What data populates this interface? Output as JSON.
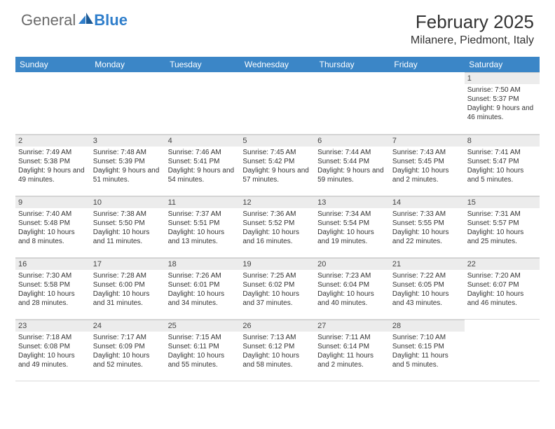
{
  "logo": {
    "part1": "General",
    "part2": "Blue"
  },
  "title": "February 2025",
  "location": "Milanere, Piedmont, Italy",
  "colors": {
    "header_bg": "#3b86c7",
    "header_text": "#ffffff",
    "daynum_bg": "#ececec",
    "border": "#d9d9d9",
    "logo_accent": "#2f7ecb"
  },
  "typography": {
    "title_size": 26,
    "location_size": 16,
    "header_size": 12,
    "cell_size": 10
  },
  "days_of_week": [
    "Sunday",
    "Monday",
    "Tuesday",
    "Wednesday",
    "Thursday",
    "Friday",
    "Saturday"
  ],
  "weeks": [
    [
      null,
      null,
      null,
      null,
      null,
      null,
      {
        "n": "1",
        "sunrise": "7:50 AM",
        "sunset": "5:37 PM",
        "dl": "9 hours and 46 minutes."
      }
    ],
    [
      {
        "n": "2",
        "sunrise": "7:49 AM",
        "sunset": "5:38 PM",
        "dl": "9 hours and 49 minutes."
      },
      {
        "n": "3",
        "sunrise": "7:48 AM",
        "sunset": "5:39 PM",
        "dl": "9 hours and 51 minutes."
      },
      {
        "n": "4",
        "sunrise": "7:46 AM",
        "sunset": "5:41 PM",
        "dl": "9 hours and 54 minutes."
      },
      {
        "n": "5",
        "sunrise": "7:45 AM",
        "sunset": "5:42 PM",
        "dl": "9 hours and 57 minutes."
      },
      {
        "n": "6",
        "sunrise": "7:44 AM",
        "sunset": "5:44 PM",
        "dl": "9 hours and 59 minutes."
      },
      {
        "n": "7",
        "sunrise": "7:43 AM",
        "sunset": "5:45 PM",
        "dl": "10 hours and 2 minutes."
      },
      {
        "n": "8",
        "sunrise": "7:41 AM",
        "sunset": "5:47 PM",
        "dl": "10 hours and 5 minutes."
      }
    ],
    [
      {
        "n": "9",
        "sunrise": "7:40 AM",
        "sunset": "5:48 PM",
        "dl": "10 hours and 8 minutes."
      },
      {
        "n": "10",
        "sunrise": "7:38 AM",
        "sunset": "5:50 PM",
        "dl": "10 hours and 11 minutes."
      },
      {
        "n": "11",
        "sunrise": "7:37 AM",
        "sunset": "5:51 PM",
        "dl": "10 hours and 13 minutes."
      },
      {
        "n": "12",
        "sunrise": "7:36 AM",
        "sunset": "5:52 PM",
        "dl": "10 hours and 16 minutes."
      },
      {
        "n": "13",
        "sunrise": "7:34 AM",
        "sunset": "5:54 PM",
        "dl": "10 hours and 19 minutes."
      },
      {
        "n": "14",
        "sunrise": "7:33 AM",
        "sunset": "5:55 PM",
        "dl": "10 hours and 22 minutes."
      },
      {
        "n": "15",
        "sunrise": "7:31 AM",
        "sunset": "5:57 PM",
        "dl": "10 hours and 25 minutes."
      }
    ],
    [
      {
        "n": "16",
        "sunrise": "7:30 AM",
        "sunset": "5:58 PM",
        "dl": "10 hours and 28 minutes."
      },
      {
        "n": "17",
        "sunrise": "7:28 AM",
        "sunset": "6:00 PM",
        "dl": "10 hours and 31 minutes."
      },
      {
        "n": "18",
        "sunrise": "7:26 AM",
        "sunset": "6:01 PM",
        "dl": "10 hours and 34 minutes."
      },
      {
        "n": "19",
        "sunrise": "7:25 AM",
        "sunset": "6:02 PM",
        "dl": "10 hours and 37 minutes."
      },
      {
        "n": "20",
        "sunrise": "7:23 AM",
        "sunset": "6:04 PM",
        "dl": "10 hours and 40 minutes."
      },
      {
        "n": "21",
        "sunrise": "7:22 AM",
        "sunset": "6:05 PM",
        "dl": "10 hours and 43 minutes."
      },
      {
        "n": "22",
        "sunrise": "7:20 AM",
        "sunset": "6:07 PM",
        "dl": "10 hours and 46 minutes."
      }
    ],
    [
      {
        "n": "23",
        "sunrise": "7:18 AM",
        "sunset": "6:08 PM",
        "dl": "10 hours and 49 minutes."
      },
      {
        "n": "24",
        "sunrise": "7:17 AM",
        "sunset": "6:09 PM",
        "dl": "10 hours and 52 minutes."
      },
      {
        "n": "25",
        "sunrise": "7:15 AM",
        "sunset": "6:11 PM",
        "dl": "10 hours and 55 minutes."
      },
      {
        "n": "26",
        "sunrise": "7:13 AM",
        "sunset": "6:12 PM",
        "dl": "10 hours and 58 minutes."
      },
      {
        "n": "27",
        "sunrise": "7:11 AM",
        "sunset": "6:14 PM",
        "dl": "11 hours and 2 minutes."
      },
      {
        "n": "28",
        "sunrise": "7:10 AM",
        "sunset": "6:15 PM",
        "dl": "11 hours and 5 minutes."
      },
      null
    ]
  ]
}
